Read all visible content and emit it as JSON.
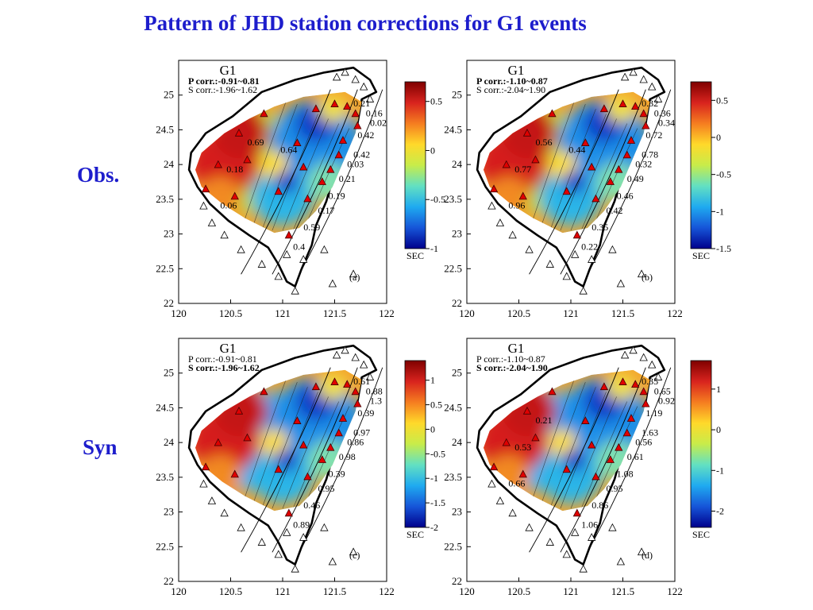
{
  "slide": {
    "title": "Pattern of JHD station corrections for G1 events",
    "row_labels": [
      "Obs.",
      "Syn"
    ]
  },
  "colors": {
    "title": "#1d1dcc",
    "station_used": "#e00000",
    "station_unused": "#ffffff",
    "colormap": [
      "#7f0000",
      "#d8231e",
      "#f57d20",
      "#ffd92a",
      "#c8ec4a",
      "#62e0c2",
      "#1faaf0",
      "#1655d8",
      "#00008c"
    ]
  },
  "icons": {
    "station_used": "red-filled-triangle",
    "station_unused": "white-outline-triangle"
  },
  "axes": {
    "x_ticks": [
      120,
      120.5,
      121,
      121.5,
      122
    ],
    "y_ticks": [
      22,
      22.5,
      23,
      23.5,
      24,
      24.5,
      25
    ],
    "x_range": [
      120,
      122
    ],
    "y_range": [
      22,
      25.5
    ]
  },
  "panels": [
    {
      "id": "a",
      "tag": "(a)",
      "event_label": "G1",
      "p_corr": "P corr.:-0.91~0.81",
      "s_corr": "S corr.:-1.96~1.62",
      "emphasis": "P",
      "colorbar": {
        "ticks": [
          0.5,
          0,
          -0.5,
          -1
        ],
        "range": [
          -1,
          0.7
        ],
        "unit": "SEC"
      },
      "station_values": [
        "0.21",
        "0.16",
        "0.02",
        "0.42",
        "0.42",
        "0.03",
        "0.21",
        "0.19",
        "0.17",
        "0.59",
        "0.4",
        "0.69",
        "0.18",
        "0.06",
        "0.64"
      ]
    },
    {
      "id": "b",
      "tag": "(b)",
      "event_label": "G1",
      "p_corr": "P corr.:-1.10~0.87",
      "s_corr": "S corr.:-2.04~1.90",
      "emphasis": "P",
      "colorbar": {
        "ticks": [
          0.5,
          0,
          -0.5,
          -1,
          -1.5
        ],
        "range": [
          -1.5,
          0.75
        ],
        "unit": "SEC"
      },
      "station_values": [
        "0.32",
        "0.36",
        "0.34",
        "0.72",
        "0.78",
        "0.32",
        "0.49",
        "0.46",
        "0.42",
        "0.35",
        "0.22",
        "0.56",
        "0.77",
        "0.96",
        "0.44"
      ]
    },
    {
      "id": "c",
      "tag": "(c)",
      "event_label": "G1",
      "p_corr": "P corr.:-0.91~0.81",
      "s_corr": "S corr.:-1.96~1.62",
      "emphasis": "S",
      "colorbar": {
        "ticks": [
          1,
          0.5,
          0,
          -0.5,
          -1,
          -1.5,
          -2
        ],
        "range": [
          -2,
          1.4
        ],
        "unit": "SEC"
      },
      "station_values": [
        "0.61",
        "0.88",
        "1.3",
        "0.39",
        "0.97",
        "0.86",
        "0.98",
        "0.39",
        "0.95",
        "0.46",
        "0.89"
      ]
    },
    {
      "id": "d",
      "tag": "(d)",
      "event_label": "G1",
      "p_corr": "P corr.:-1.10~0.87",
      "s_corr": "S corr.:-2.04~1.90",
      "emphasis": "S",
      "colorbar": {
        "ticks": [
          1,
          0,
          -1,
          -2
        ],
        "range": [
          -2.4,
          1.7
        ],
        "unit": "SEC"
      },
      "station_values": [
        "0.35",
        "0.65",
        "0.92",
        "1.19",
        "1.63",
        "0.56",
        "0.61",
        "1.08",
        "0.95",
        "0.86",
        "1.06",
        "0.21",
        "0.53",
        "0.66"
      ]
    }
  ]
}
